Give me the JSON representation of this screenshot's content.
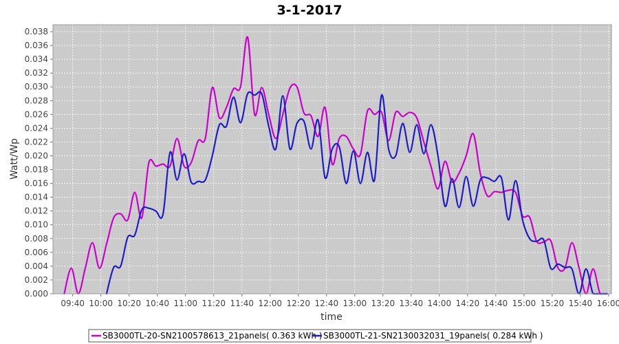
{
  "chart_data": {
    "type": "line",
    "title": "3-1-2017",
    "xlabel": "time",
    "ylabel": "Watt/Wp",
    "xlim": [
      "09:26",
      "16:02"
    ],
    "ylim": [
      0,
      0.039
    ],
    "x_ticks": [
      "09:40",
      "10:00",
      "10:20",
      "10:40",
      "11:00",
      "11:20",
      "11:40",
      "12:00",
      "12:20",
      "12:40",
      "13:00",
      "13:20",
      "13:40",
      "14:00",
      "14:20",
      "14:40",
      "15:00",
      "15:20",
      "15:40",
      "16:00"
    ],
    "y_ticks": [
      "0.000",
      "0.002",
      "0.004",
      "0.006",
      "0.008",
      "0.010",
      "0.012",
      "0.014",
      "0.016",
      "0.018",
      "0.020",
      "0.022",
      "0.024",
      "0.026",
      "0.028",
      "0.030",
      "0.032",
      "0.034",
      "0.036",
      "0.038"
    ],
    "grid": true,
    "legend_position": "bottom",
    "series": [
      {
        "name": "SB3000TL-20-SN2100578613_21panels( 0.363 kWh )",
        "color": "#cc00cc",
        "x": [
          "09:34",
          "09:39",
          "09:44",
          "09:49",
          "09:54",
          "09:59",
          "10:04",
          "10:09",
          "10:14",
          "10:19",
          "10:24",
          "10:29",
          "10:34",
          "10:39",
          "10:44",
          "10:49",
          "10:54",
          "10:59",
          "11:04",
          "11:09",
          "11:14",
          "11:19",
          "11:24",
          "11:29",
          "11:34",
          "11:39",
          "11:44",
          "11:49",
          "11:54",
          "11:59",
          "12:04",
          "12:09",
          "12:14",
          "12:19",
          "12:24",
          "12:29",
          "12:34",
          "12:39",
          "12:44",
          "12:49",
          "12:54",
          "12:59",
          "13:04",
          "13:09",
          "13:14",
          "13:19",
          "13:24",
          "13:29",
          "13:34",
          "13:39",
          "13:44",
          "13:49",
          "13:54",
          "13:59",
          "14:04",
          "14:09",
          "14:14",
          "14:19",
          "14:24",
          "14:29",
          "14:34",
          "14:39",
          "14:44",
          "14:49",
          "14:54",
          "14:59",
          "15:04",
          "15:09",
          "15:14",
          "15:19",
          "15:24",
          "15:29",
          "15:34",
          "15:39",
          "15:44",
          "15:49",
          "15:54",
          "15:59"
        ],
        "values": [
          0.0,
          0.0037,
          0.0,
          0.0038,
          0.0074,
          0.0037,
          0.0072,
          0.011,
          0.0116,
          0.0107,
          0.0147,
          0.011,
          0.019,
          0.0185,
          0.0188,
          0.0185,
          0.0225,
          0.0185,
          0.019,
          0.0222,
          0.0225,
          0.0299,
          0.0255,
          0.027,
          0.0297,
          0.03,
          0.0372,
          0.026,
          0.0299,
          0.026,
          0.0225,
          0.026,
          0.0298,
          0.03,
          0.0262,
          0.0258,
          0.0228,
          0.027,
          0.0188,
          0.0225,
          0.0228,
          0.021,
          0.0202,
          0.0265,
          0.026,
          0.0263,
          0.0222,
          0.0263,
          0.0257,
          0.0263,
          0.0255,
          0.022,
          0.0185,
          0.0152,
          0.0192,
          0.0162,
          0.0175,
          0.02,
          0.0232,
          0.0175,
          0.0142,
          0.0148,
          0.0147,
          0.015,
          0.0147,
          0.0113,
          0.0111,
          0.0076,
          0.0075,
          0.0077,
          0.0038,
          0.0037,
          0.0074,
          0.0038,
          0.0,
          0.0036,
          0.0,
          0.0
        ]
      },
      {
        "name": "SB3000TL-21-SN2130032031_19panels( 0.284 kWh )",
        "color": "#1c1cc8",
        "x": [
          "10:04",
          "10:09",
          "10:14",
          "10:19",
          "10:24",
          "10:29",
          "10:34",
          "10:39",
          "10:44",
          "10:49",
          "10:54",
          "10:59",
          "11:04",
          "11:09",
          "11:14",
          "11:19",
          "11:24",
          "11:29",
          "11:34",
          "11:39",
          "11:44",
          "11:49",
          "11:54",
          "11:59",
          "12:04",
          "12:09",
          "12:14",
          "12:19",
          "12:24",
          "12:29",
          "12:34",
          "12:39",
          "12:44",
          "12:49",
          "12:54",
          "12:59",
          "13:04",
          "13:09",
          "13:14",
          "13:19",
          "13:24",
          "13:29",
          "13:34",
          "13:39",
          "13:44",
          "13:49",
          "13:54",
          "13:59",
          "14:04",
          "14:09",
          "14:14",
          "14:19",
          "14:24",
          "14:29",
          "14:34",
          "14:39",
          "14:44",
          "14:49",
          "14:54",
          "14:59",
          "15:04",
          "15:09",
          "15:14",
          "15:19",
          "15:24",
          "15:29",
          "15:34",
          "15:39",
          "15:44",
          "15:49",
          "15:54",
          "15:59"
        ],
        "values": [
          0.0,
          0.0038,
          0.004,
          0.0082,
          0.0085,
          0.0122,
          0.0124,
          0.012,
          0.0115,
          0.0205,
          0.0165,
          0.0203,
          0.0162,
          0.0163,
          0.0165,
          0.02,
          0.0245,
          0.0243,
          0.0285,
          0.0248,
          0.029,
          0.0288,
          0.029,
          0.0243,
          0.021,
          0.0287,
          0.021,
          0.0247,
          0.025,
          0.021,
          0.0252,
          0.0168,
          0.021,
          0.0213,
          0.016,
          0.0207,
          0.016,
          0.0205,
          0.0165,
          0.0288,
          0.021,
          0.02,
          0.0247,
          0.0205,
          0.0245,
          0.0203,
          0.0245,
          0.02,
          0.0127,
          0.0167,
          0.0125,
          0.017,
          0.0127,
          0.0165,
          0.0168,
          0.0163,
          0.0168,
          0.0107,
          0.0164,
          0.0107,
          0.008,
          0.0076,
          0.0078,
          0.0037,
          0.0043,
          0.0038,
          0.0036,
          0.0,
          0.0036,
          0.0,
          0.0,
          0.0
        ]
      }
    ]
  }
}
